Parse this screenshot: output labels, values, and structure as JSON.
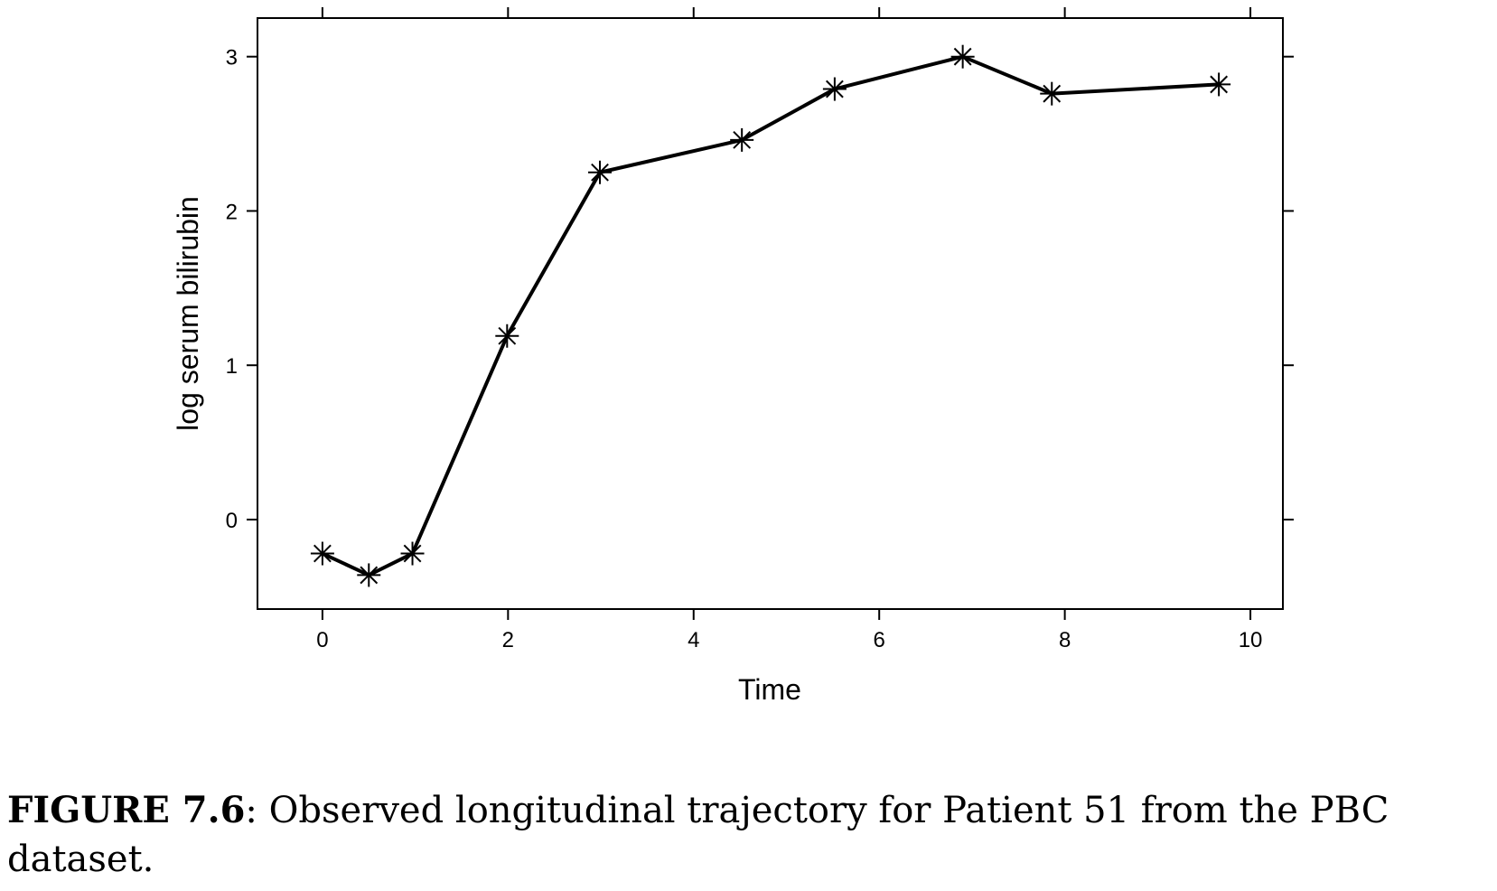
{
  "chart_data": {
    "type": "line",
    "title": "",
    "xlabel": "Time",
    "ylabel": "log serum bilirubin",
    "xlim": [
      -0.7,
      10.35
    ],
    "ylim": [
      -0.58,
      3.25
    ],
    "xticks": [
      0,
      2,
      4,
      6,
      8,
      10
    ],
    "yticks": [
      0,
      1,
      2,
      3
    ],
    "marker": "asterisk",
    "grid": false,
    "series": [
      {
        "x": [
          0,
          0.5,
          0.97,
          1.99,
          2.99,
          4.52,
          5.52,
          6.9,
          7.86,
          9.66
        ],
        "y": [
          -0.22,
          -0.36,
          -0.22,
          1.19,
          2.25,
          2.46,
          2.79,
          3.0,
          2.76,
          2.82
        ]
      }
    ]
  },
  "caption": {
    "label": "FIGURE 7.6",
    "text": ": Observed longitudinal trajectory for Patient 51 from the PBC dataset."
  }
}
